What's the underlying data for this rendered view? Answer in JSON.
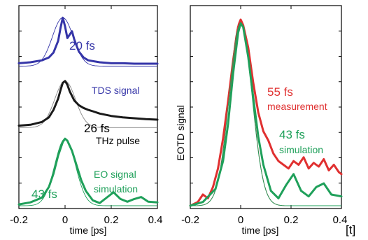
{
  "chart_data": [
    {
      "type": "line",
      "xlabel": "time [ps]",
      "ylabel": "",
      "xlim": [
        -0.2,
        0.4
      ],
      "x_ticks": [
        "-0.2",
        "0",
        "0.2",
        "0.4"
      ],
      "grid": false,
      "annotations": [
        {
          "text": "20 fs",
          "color": "#3535a8"
        },
        {
          "text": "TDS signal",
          "color": "#3535a8"
        },
        {
          "text": "26 fs",
          "color": "#000000"
        },
        {
          "text": "THz pulse",
          "color": "#000000"
        },
        {
          "text": "EO signal",
          "color": "#1fa05a"
        },
        {
          "text": "simulation",
          "color": "#1fa05a"
        },
        {
          "text": "43 fs",
          "color": "#1fa05a"
        }
      ],
      "series": [
        {
          "color": "#3535a8",
          "thin_color": "#3535a8",
          "offset": 0.75,
          "scale": 0.26,
          "x": [
            -0.2,
            -0.15,
            -0.1,
            -0.07,
            -0.05,
            -0.03,
            -0.02,
            -0.01,
            0.0,
            0.01,
            0.02,
            0.03,
            0.04,
            0.05,
            0.06,
            0.08,
            0.1,
            0.15,
            0.2,
            0.25,
            0.3,
            0.35,
            0.4
          ],
          "y": [
            0.06,
            0.08,
            0.12,
            0.18,
            0.28,
            0.52,
            0.78,
            1.0,
            0.82,
            0.58,
            0.65,
            0.72,
            0.55,
            0.42,
            0.3,
            0.18,
            0.12,
            0.08,
            0.06,
            0.06,
            0.05,
            0.05,
            0.05
          ]
        },
        {
          "color": "#1a1a1a",
          "thin_color": "#888888",
          "offset": 0.42,
          "scale": 0.25,
          "x": [
            -0.2,
            -0.15,
            -0.1,
            -0.07,
            -0.05,
            -0.03,
            -0.02,
            -0.01,
            0.0,
            0.01,
            0.02,
            0.04,
            0.06,
            0.08,
            0.1,
            0.12,
            0.15,
            0.2,
            0.25,
            0.3,
            0.35,
            0.4
          ],
          "y": [
            0.04,
            0.06,
            0.12,
            0.22,
            0.38,
            0.62,
            0.8,
            0.96,
            1.0,
            0.92,
            0.78,
            0.58,
            0.48,
            0.42,
            0.38,
            0.35,
            0.3,
            0.25,
            0.22,
            0.2,
            0.18,
            0.17
          ]
        },
        {
          "color": "#1fa05a",
          "thin_color": "#1fa05a",
          "offset": 0.0,
          "scale": 0.36,
          "x": [
            -0.2,
            -0.15,
            -0.1,
            -0.07,
            -0.05,
            -0.03,
            -0.01,
            0.0,
            0.01,
            0.03,
            0.05,
            0.07,
            0.09,
            0.12,
            0.15,
            0.18,
            0.21,
            0.24,
            0.27,
            0.3,
            0.33,
            0.36,
            0.4
          ],
          "y": [
            0.02,
            0.05,
            0.12,
            0.28,
            0.48,
            0.75,
            0.95,
            1.0,
            0.97,
            0.82,
            0.6,
            0.38,
            0.22,
            0.08,
            0.04,
            0.12,
            0.2,
            0.1,
            0.06,
            0.1,
            0.13,
            0.06,
            0.05
          ]
        }
      ]
    },
    {
      "type": "line",
      "xlabel": "time [ps]",
      "ylabel": "EOTD signal",
      "xlim": [
        -0.2,
        0.4
      ],
      "x_ticks": [
        "-0.2",
        "0",
        "0.2",
        "0.4"
      ],
      "grid": false,
      "annotations": [
        {
          "text": "55 fs",
          "color": "#e03030"
        },
        {
          "text": "measurement",
          "color": "#e03030"
        },
        {
          "text": "43 fs",
          "color": "#1fa05a"
        },
        {
          "text": "simulation",
          "color": "#1fa05a"
        }
      ],
      "series": [
        {
          "color": "#e03030",
          "thin_color": "#a02020",
          "x": [
            -0.2,
            -0.17,
            -0.15,
            -0.13,
            -0.11,
            -0.09,
            -0.07,
            -0.05,
            -0.03,
            -0.01,
            0.0,
            0.01,
            0.03,
            0.05,
            0.07,
            0.09,
            0.11,
            0.13,
            0.15,
            0.17,
            0.19,
            0.21,
            0.23,
            0.25,
            0.27,
            0.29,
            0.31,
            0.33,
            0.35,
            0.37,
            0.39,
            0.4
          ],
          "y": [
            0.0,
            0.02,
            0.06,
            0.04,
            0.1,
            0.2,
            0.36,
            0.56,
            0.78,
            0.96,
            1.0,
            0.97,
            0.85,
            0.66,
            0.5,
            0.4,
            0.35,
            0.28,
            0.24,
            0.22,
            0.2,
            0.24,
            0.22,
            0.26,
            0.2,
            0.23,
            0.21,
            0.25,
            0.19,
            0.22,
            0.18,
            0.17
          ]
        },
        {
          "color": "#1fa05a",
          "thin_color": "#1fa05a",
          "x": [
            -0.2,
            -0.15,
            -0.1,
            -0.07,
            -0.05,
            -0.03,
            -0.01,
            0.0,
            0.01,
            0.03,
            0.05,
            0.07,
            0.09,
            0.12,
            0.15,
            0.18,
            0.21,
            0.24,
            0.27,
            0.3,
            0.33,
            0.36,
            0.4
          ],
          "y": [
            0.0,
            0.02,
            0.09,
            0.24,
            0.44,
            0.71,
            0.93,
            0.98,
            0.96,
            0.8,
            0.58,
            0.37,
            0.22,
            0.08,
            0.04,
            0.11,
            0.17,
            0.08,
            0.05,
            0.1,
            0.12,
            0.06,
            0.05
          ]
        }
      ]
    }
  ],
  "corner_label": "[t]"
}
